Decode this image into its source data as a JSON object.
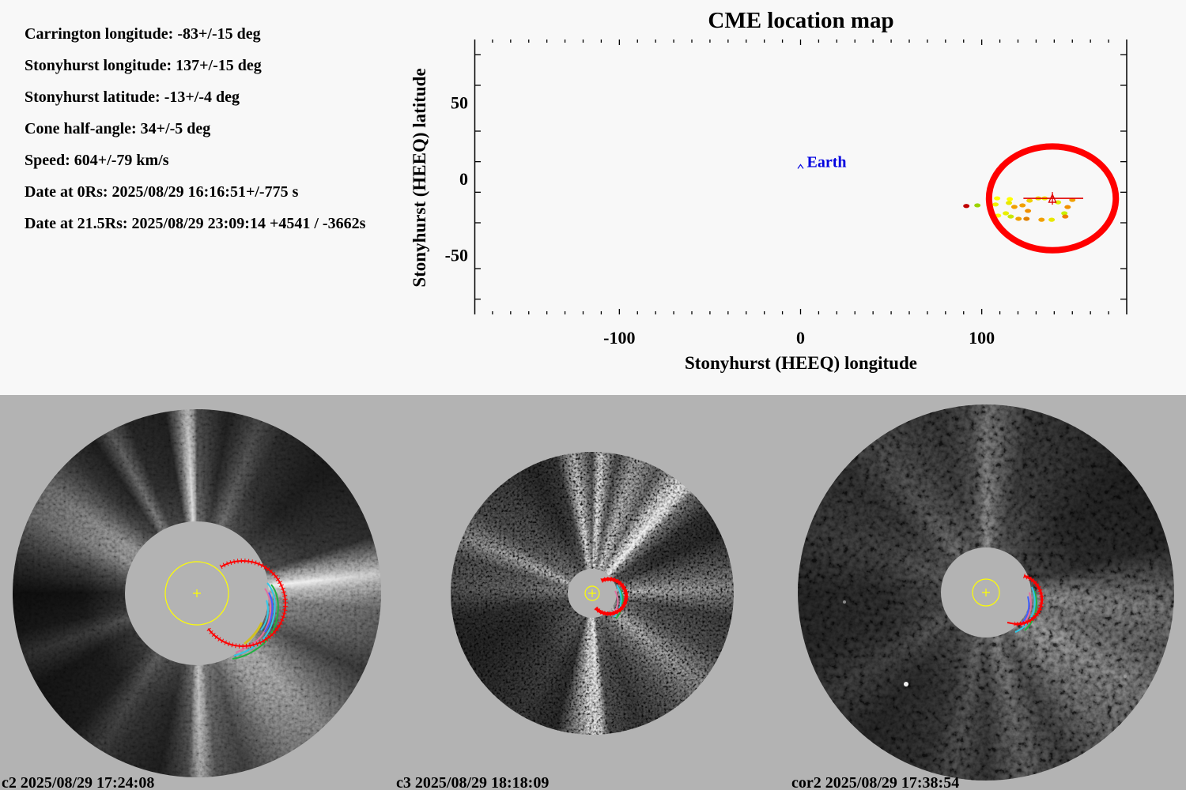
{
  "info": {
    "lines": [
      {
        "label": "Carrington longitude:",
        "value": "-83+/-15 deg"
      },
      {
        "label": "Stonyhurst longitude:",
        "value": "137+/-15 deg"
      },
      {
        "label": "Stonyhurst latitude:",
        "value": "-13+/-4 deg"
      },
      {
        "label": "Cone half-angle:",
        "value": "34+/-5 deg"
      },
      {
        "label": "Speed:",
        "value": "604+/-79 km/s"
      },
      {
        "label": "Date at 0Rs:",
        "value": "2025/08/29 16:16:51+/-775 s"
      },
      {
        "label": "Date at 21.5Rs:",
        "value": "2025/08/29 23:09:14 +4541 / -3662s"
      }
    ]
  },
  "chart_data": {
    "type": "scatter",
    "title": "CME location map",
    "xlabel": "Stonyhurst (HEEQ) longitude",
    "ylabel": "Stonyhurst (HEEQ) latitude",
    "xlim": [
      -180,
      180
    ],
    "ylim": [
      -90,
      90
    ],
    "xticks_major": [
      -100,
      0,
      100
    ],
    "xtick_labels": [
      "-100",
      "0",
      "100"
    ],
    "xtick_minor_step": 10,
    "yticks": [
      80,
      60,
      30,
      10,
      -10,
      -30,
      -60,
      -80
    ],
    "ytick_label_values": [
      50,
      0,
      -50
    ],
    "ytick_labels": [
      "50",
      "0",
      "-50"
    ],
    "grid": false,
    "legend": "none",
    "earth": {
      "label": "Earth",
      "lon": 0,
      "lat": 7,
      "marker": "caret",
      "color": "#0000e0"
    },
    "cme_cone": {
      "center_lon": 139,
      "center_lat": -14,
      "half_width_lon": 35,
      "half_width_lat": 34,
      "color": "#ff0000"
    },
    "fit_line": {
      "lon": [
        123,
        156
      ],
      "lat": -14,
      "color": "#e00000"
    },
    "center_marker": {
      "lon": 139,
      "lat": -14,
      "marker": "triangle",
      "color": "#e00000"
    },
    "detection_points": [
      {
        "lon": 91.5,
        "lat": -19,
        "color": "#c00000"
      },
      {
        "lon": 97.6,
        "lat": -18.6,
        "color": "#9cd400"
      },
      {
        "lon": 108.5,
        "lat": -14,
        "color": "#ffff00"
      },
      {
        "lon": 107.6,
        "lat": -18,
        "color": "#f0f000"
      },
      {
        "lon": 115.5,
        "lat": -14.5,
        "color": "#ffff00"
      },
      {
        "lon": 115,
        "lat": -17,
        "color": "#e8e800"
      },
      {
        "lon": 118,
        "lat": -19.6,
        "color": "#f0a000"
      },
      {
        "lon": 122.5,
        "lat": -18.6,
        "color": "#f0a000"
      },
      {
        "lon": 126.4,
        "lat": -15.5,
        "color": "#f0d000"
      },
      {
        "lon": 113.3,
        "lat": -23.8,
        "color": "#e8f000"
      },
      {
        "lon": 109,
        "lat": -25.3,
        "color": "#ffff00"
      },
      {
        "lon": 116,
        "lat": -25.9,
        "color": "#c8e800"
      },
      {
        "lon": 120.3,
        "lat": -27.4,
        "color": "#f0a000"
      },
      {
        "lon": 125.5,
        "lat": -22.2,
        "color": "#f09000"
      },
      {
        "lon": 124.7,
        "lat": -27.4,
        "color": "#e08000"
      },
      {
        "lon": 133,
        "lat": -28,
        "color": "#f0a000"
      },
      {
        "lon": 138.6,
        "lat": -28,
        "color": "#e8e800"
      },
      {
        "lon": 131.2,
        "lat": -14,
        "color": "#f0e000"
      },
      {
        "lon": 134.7,
        "lat": -14,
        "color": "#f0f000"
      },
      {
        "lon": 142.1,
        "lat": -16.6,
        "color": "#e0f000"
      },
      {
        "lon": 145.6,
        "lat": -23.8,
        "color": "#c8f000"
      },
      {
        "lon": 146.1,
        "lat": -25.9,
        "color": "#f08000"
      },
      {
        "lon": 147.4,
        "lat": -19.7,
        "color": "#f09000"
      },
      {
        "lon": 150,
        "lat": -15,
        "color": "#f0a000"
      }
    ]
  },
  "panels": [
    {
      "instrument": "c2",
      "date": "2025/08/29",
      "time": "17:24:08"
    },
    {
      "instrument": "c3",
      "date": "2025/08/29",
      "time": "18:18:09"
    },
    {
      "instrument": "cor2",
      "date": "2025/08/29",
      "time": "17:38:54"
    }
  ],
  "colors": {
    "background": "#f8f8f8",
    "panel_background": "#b3b3b3",
    "cme_fit": "#ff0000",
    "sun_outline": "#ffff00",
    "earth_label": "#0000e0"
  }
}
